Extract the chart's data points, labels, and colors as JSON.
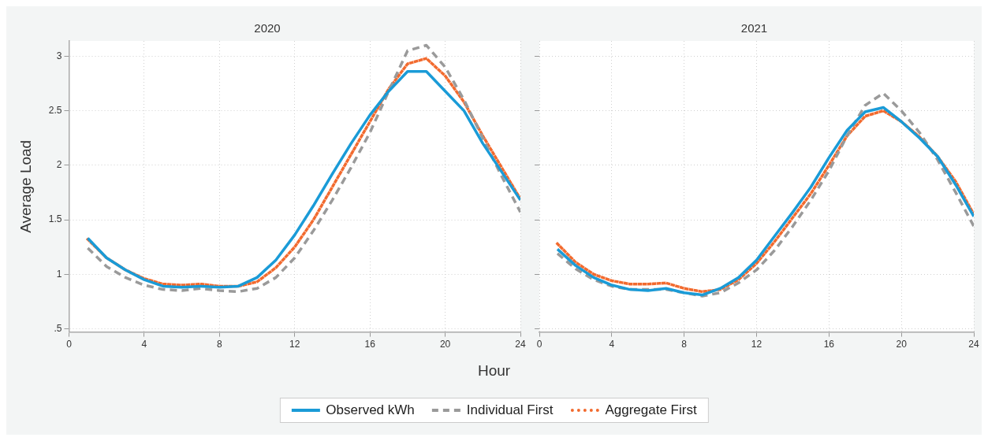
{
  "chart_data": [
    {
      "type": "line",
      "title": "2020",
      "xlabel": "Hour",
      "ylabel": "Average Load",
      "x": [
        1,
        2,
        3,
        4,
        5,
        6,
        7,
        8,
        9,
        10,
        11,
        12,
        13,
        14,
        15,
        16,
        17,
        18,
        19,
        20,
        21,
        22,
        23,
        24
      ],
      "xlim": [
        0,
        24
      ],
      "xticks": [
        0,
        4,
        8,
        12,
        16,
        20,
        24
      ],
      "ylim": [
        0.47,
        3.14
      ],
      "yticks": [
        {
          "value": 0.5,
          "label": ".5"
        },
        1,
        1.5,
        2,
        2.5,
        3
      ],
      "grid": true,
      "legend": "bottom",
      "marker": "none",
      "series": [
        {
          "name": "Observed kWh",
          "color": "#1a9bd7",
          "line_style": "solid",
          "values": [
            1.33,
            1.15,
            1.04,
            0.95,
            0.89,
            0.88,
            0.89,
            0.88,
            0.89,
            0.97,
            1.13,
            1.36,
            1.63,
            1.92,
            2.2,
            2.46,
            2.68,
            2.86,
            2.86,
            2.68,
            2.5,
            2.2,
            1.94,
            1.68
          ]
        },
        {
          "name": "Individual First",
          "color": "#9a9a9a",
          "line_style": "dashed",
          "values": [
            1.24,
            1.07,
            0.97,
            0.9,
            0.86,
            0.85,
            0.87,
            0.85,
            0.84,
            0.87,
            0.97,
            1.15,
            1.4,
            1.68,
            1.98,
            2.3,
            2.68,
            3.05,
            3.1,
            2.9,
            2.6,
            2.25,
            1.9,
            1.57
          ]
        },
        {
          "name": "Aggregate First",
          "color": "#f26a2e",
          "line_style": "dotted",
          "values": [
            1.32,
            1.15,
            1.04,
            0.96,
            0.91,
            0.9,
            0.91,
            0.89,
            0.89,
            0.93,
            1.06,
            1.25,
            1.5,
            1.8,
            2.1,
            2.4,
            2.7,
            2.93,
            2.98,
            2.82,
            2.58,
            2.27,
            1.98,
            1.69
          ]
        }
      ]
    },
    {
      "type": "line",
      "title": "2021",
      "x": [
        1,
        2,
        3,
        4,
        5,
        6,
        7,
        8,
        9,
        10,
        11,
        12,
        13,
        14,
        15,
        16,
        17,
        18,
        19,
        20,
        21,
        22,
        23,
        24
      ],
      "xlim": [
        0,
        24
      ],
      "xticks": [
        0,
        4,
        8,
        12,
        16,
        20,
        24
      ],
      "ylim": [
        0.47,
        3.14
      ],
      "yticks": [
        0.5,
        1,
        1.5,
        2,
        2.5,
        3
      ],
      "grid": true,
      "tick_labels": "x",
      "marker": "none",
      "series": [
        {
          "color": "#1a9bd7",
          "line_style": "solid",
          "values": [
            1.23,
            1.08,
            0.97,
            0.9,
            0.86,
            0.85,
            0.87,
            0.83,
            0.81,
            0.87,
            0.97,
            1.13,
            1.35,
            1.57,
            1.8,
            2.07,
            2.32,
            2.49,
            2.53,
            2.4,
            2.25,
            2.08,
            1.82,
            1.53
          ]
        },
        {
          "color": "#9a9a9a",
          "line_style": "dashed",
          "values": [
            1.19,
            1.05,
            0.95,
            0.89,
            0.86,
            0.86,
            0.86,
            0.83,
            0.8,
            0.83,
            0.92,
            1.04,
            1.22,
            1.44,
            1.68,
            1.95,
            2.27,
            2.55,
            2.66,
            2.5,
            2.3,
            2.05,
            1.75,
            1.44
          ]
        },
        {
          "color": "#f26a2e",
          "line_style": "dotted",
          "values": [
            1.28,
            1.11,
            1.0,
            0.94,
            0.91,
            0.91,
            0.92,
            0.87,
            0.84,
            0.86,
            0.95,
            1.1,
            1.3,
            1.52,
            1.74,
            2.0,
            2.27,
            2.45,
            2.5,
            2.4,
            2.26,
            2.08,
            1.85,
            1.55
          ]
        }
      ]
    }
  ]
}
